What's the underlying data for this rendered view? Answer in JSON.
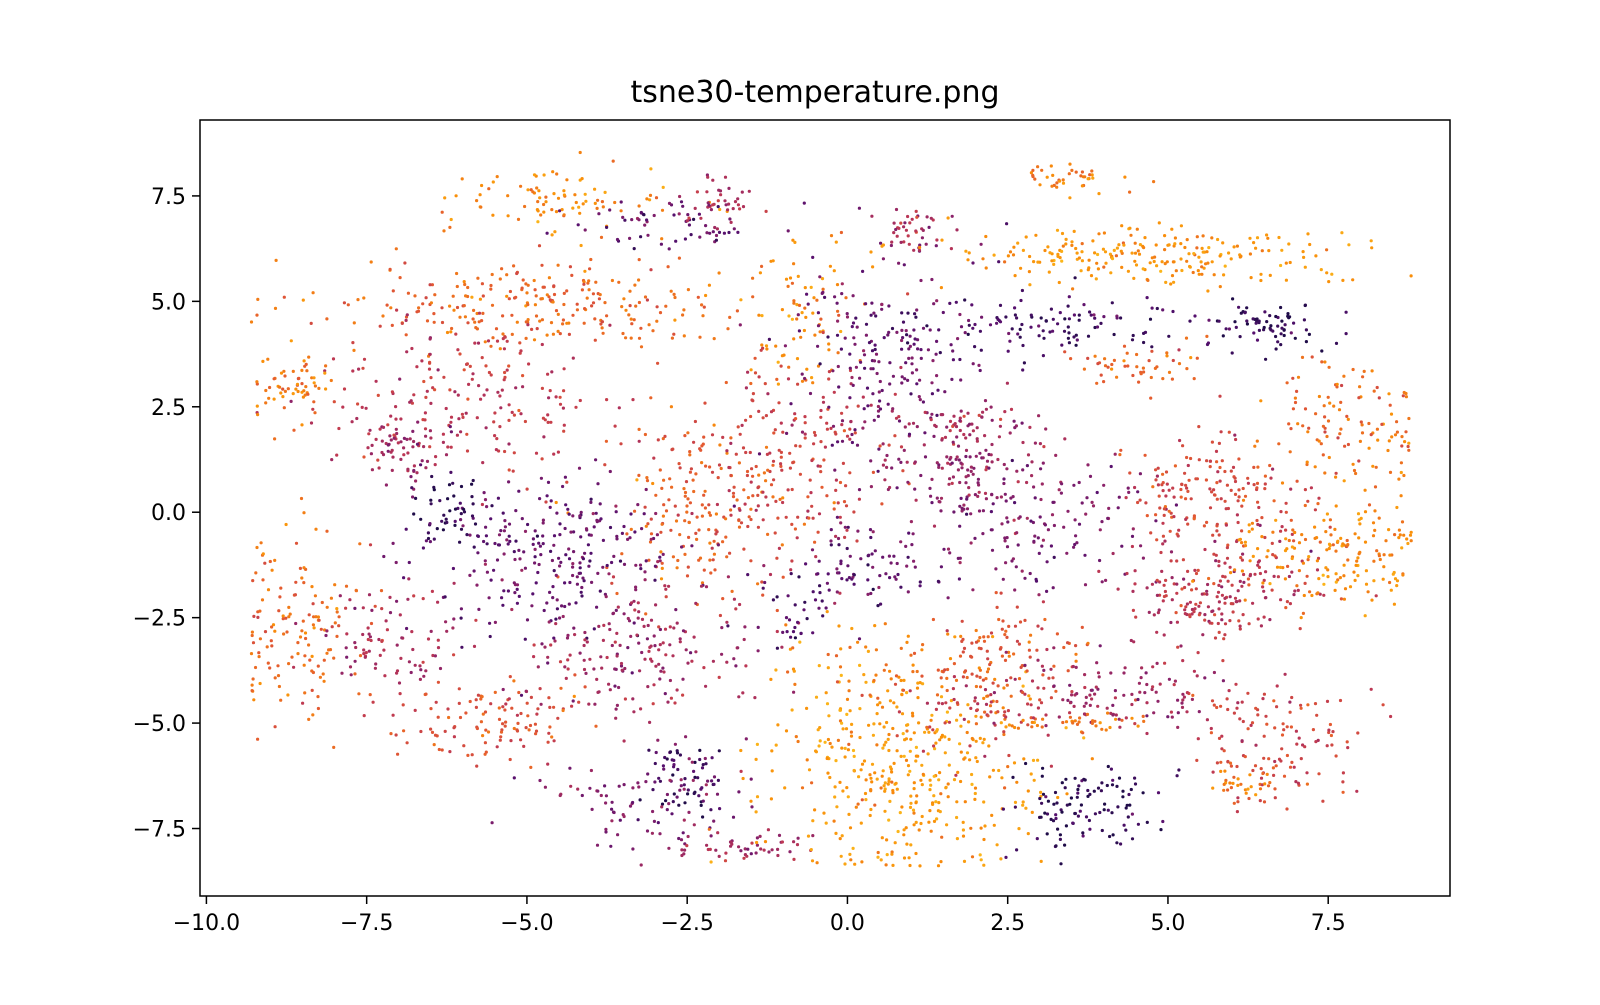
{
  "chart_data": {
    "type": "scatter",
    "title": "tsne30-temperature.png",
    "xlabel": "",
    "ylabel": "",
    "xlim": [
      -10.1,
      9.4
    ],
    "ylim": [
      -9.1,
      9.3
    ],
    "x_ticks": [
      -10.0,
      -7.5,
      -5.0,
      -2.5,
      0.0,
      2.5,
      5.0,
      7.5
    ],
    "x_tick_labels": [
      "−10.0",
      "−7.5",
      "−5.0",
      "−2.5",
      "0.0",
      "2.5",
      "5.0",
      "7.5"
    ],
    "y_ticks": [
      7.5,
      5.0,
      2.5,
      0.0,
      -2.5,
      -5.0,
      -7.5
    ],
    "y_tick_labels": [
      "7.5",
      "5.0",
      "2.5",
      "0.0",
      "−2.5",
      "−5.0",
      "−7.5"
    ],
    "grid": false,
    "legend": "none",
    "colormap": "inferno",
    "colormap_stops": [
      "#1f0c48",
      "#56106e",
      "#8a226a",
      "#bc3754",
      "#e45a31",
      "#f98e09",
      "#fbb61a"
    ],
    "clusters": [
      {
        "cx": -4.8,
        "cy": 4.9,
        "sx": 1.7,
        "sy": 0.55,
        "n": 260,
        "c": 0.72
      },
      {
        "cx": -6.0,
        "cy": 2.6,
        "sx": 1.2,
        "sy": 0.9,
        "n": 200,
        "c": 0.52
      },
      {
        "cx": -6.9,
        "cy": 1.6,
        "sx": 0.35,
        "sy": 0.4,
        "n": 60,
        "c": 0.38
      },
      {
        "cx": -8.6,
        "cy": 3.0,
        "sx": 0.35,
        "sy": 0.45,
        "n": 60,
        "c": 0.78
      },
      {
        "cx": -4.5,
        "cy": 7.4,
        "sx": 0.9,
        "sy": 0.4,
        "n": 90,
        "c": 0.82
      },
      {
        "cx": -2.8,
        "cy": 6.8,
        "sx": 0.9,
        "sy": 0.25,
        "n": 60,
        "c": 0.22
      },
      {
        "cx": -2.0,
        "cy": 7.4,
        "sx": 0.35,
        "sy": 0.3,
        "n": 40,
        "c": 0.42
      },
      {
        "cx": -0.7,
        "cy": 4.8,
        "sx": 0.4,
        "sy": 1.1,
        "n": 70,
        "c": 0.82
      },
      {
        "cx": -2.4,
        "cy": 0.1,
        "sx": 0.7,
        "sy": 1.0,
        "n": 160,
        "c": 0.7
      },
      {
        "cx": -1.0,
        "cy": 1.2,
        "sx": 1.0,
        "sy": 1.3,
        "n": 230,
        "c": 0.56
      },
      {
        "cx": -4.6,
        "cy": -1.1,
        "sx": 1.0,
        "sy": 1.0,
        "n": 260,
        "c": 0.22
      },
      {
        "cx": -6.2,
        "cy": 0.1,
        "sx": 0.35,
        "sy": 0.4,
        "n": 50,
        "c": 0.06
      },
      {
        "cx": -3.2,
        "cy": -3.2,
        "sx": 1.0,
        "sy": 0.7,
        "n": 180,
        "c": 0.42
      },
      {
        "cx": -8.6,
        "cy": -2.7,
        "sx": 0.55,
        "sy": 1.1,
        "n": 140,
        "c": 0.72
      },
      {
        "cx": -7.0,
        "cy": -3.0,
        "sx": 0.7,
        "sy": 0.7,
        "n": 90,
        "c": 0.45
      },
      {
        "cx": -5.6,
        "cy": -5.0,
        "sx": 0.7,
        "sy": 0.5,
        "n": 120,
        "c": 0.62
      },
      {
        "cx": -2.5,
        "cy": -6.4,
        "sx": 0.3,
        "sy": 0.5,
        "n": 60,
        "c": 0.1
      },
      {
        "cx": -3.2,
        "cy": -6.8,
        "sx": 0.8,
        "sy": 0.6,
        "n": 90,
        "c": 0.32
      },
      {
        "cx": -1.6,
        "cy": -7.9,
        "sx": 0.6,
        "sy": 0.2,
        "n": 50,
        "c": 0.42
      },
      {
        "cx": 0.9,
        "cy": -6.0,
        "sx": 1.1,
        "sy": 1.3,
        "n": 420,
        "c": 0.88
      },
      {
        "cx": 1.0,
        "cy": -3.7,
        "sx": 0.9,
        "sy": 0.4,
        "n": 60,
        "c": 0.74
      },
      {
        "cx": 0.6,
        "cy": 3.6,
        "sx": 0.8,
        "sy": 1.2,
        "n": 200,
        "c": 0.25
      },
      {
        "cx": 1.0,
        "cy": 6.6,
        "sx": 0.3,
        "sy": 0.3,
        "n": 40,
        "c": 0.45
      },
      {
        "cx": 1.8,
        "cy": 2.1,
        "sx": 0.4,
        "sy": 0.25,
        "n": 40,
        "c": 0.45
      },
      {
        "cx": 3.2,
        "cy": 4.4,
        "sx": 1.3,
        "sy": 0.35,
        "n": 120,
        "c": 0.12
      },
      {
        "cx": 6.6,
        "cy": 4.4,
        "sx": 0.5,
        "sy": 0.3,
        "n": 70,
        "c": 0.05
      },
      {
        "cx": 4.5,
        "cy": 6.1,
        "sx": 1.7,
        "sy": 0.35,
        "n": 230,
        "c": 0.86
      },
      {
        "cx": 3.6,
        "cy": 7.9,
        "sx": 0.4,
        "sy": 0.15,
        "n": 40,
        "c": 0.78
      },
      {
        "cx": 2.0,
        "cy": 1.0,
        "sx": 0.8,
        "sy": 0.8,
        "n": 150,
        "c": 0.38
      },
      {
        "cx": 3.0,
        "cy": -0.5,
        "sx": 1.2,
        "sy": 0.7,
        "n": 140,
        "c": 0.28
      },
      {
        "cx": 0.3,
        "cy": -1.2,
        "sx": 0.6,
        "sy": 0.5,
        "n": 70,
        "c": 0.2
      },
      {
        "cx": -0.8,
        "cy": -2.3,
        "sx": 0.4,
        "sy": 0.5,
        "n": 40,
        "c": 0.12
      },
      {
        "cx": 5.7,
        "cy": 0.4,
        "sx": 0.7,
        "sy": 0.8,
        "n": 180,
        "c": 0.58
      },
      {
        "cx": 5.7,
        "cy": -2.0,
        "sx": 0.7,
        "sy": 0.6,
        "n": 180,
        "c": 0.5
      },
      {
        "cx": 7.8,
        "cy": 2.0,
        "sx": 0.6,
        "sy": 0.8,
        "n": 120,
        "c": 0.74
      },
      {
        "cx": 7.6,
        "cy": -0.9,
        "sx": 0.8,
        "sy": 0.7,
        "n": 170,
        "c": 0.82
      },
      {
        "cx": 6.6,
        "cy": -5.4,
        "sx": 0.6,
        "sy": 0.8,
        "n": 130,
        "c": 0.58
      },
      {
        "cx": 6.2,
        "cy": -6.4,
        "sx": 0.25,
        "sy": 0.2,
        "n": 30,
        "c": 0.8
      },
      {
        "cx": 3.8,
        "cy": -7.0,
        "sx": 0.6,
        "sy": 0.5,
        "n": 110,
        "c": 0.05
      },
      {
        "cx": 2.5,
        "cy": -3.4,
        "sx": 0.6,
        "sy": 0.6,
        "n": 100,
        "c": 0.65
      },
      {
        "cx": 4.2,
        "cy": -4.3,
        "sx": 1.0,
        "sy": 0.5,
        "n": 120,
        "c": 0.4
      },
      {
        "cx": 3.4,
        "cy": -5.0,
        "sx": 0.7,
        "sy": 0.12,
        "n": 40,
        "c": 0.78
      },
      {
        "cx": 2.0,
        "cy": -4.8,
        "sx": 0.6,
        "sy": 0.5,
        "n": 60,
        "c": 0.52
      },
      {
        "cx": 4.4,
        "cy": 3.4,
        "sx": 0.6,
        "sy": 0.3,
        "n": 50,
        "c": 0.7
      }
    ]
  }
}
